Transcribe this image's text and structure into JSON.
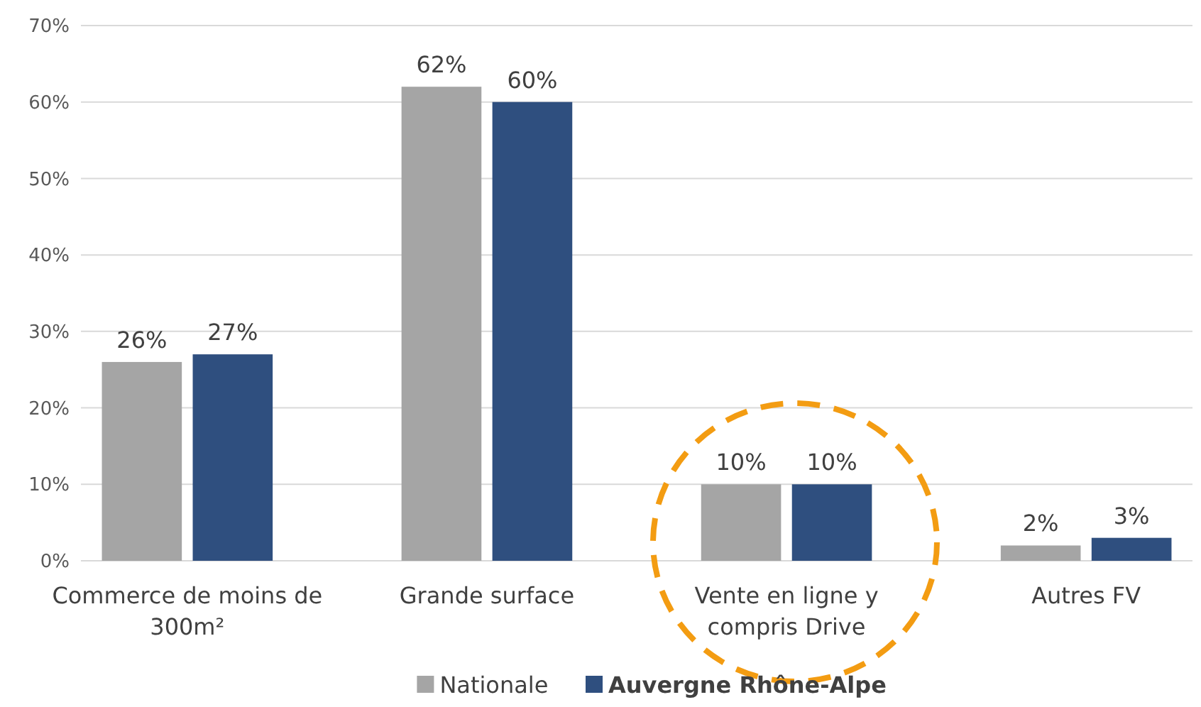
{
  "chart_data": {
    "type": "bar",
    "categories": [
      "Commerce de moins de 300m²",
      "Grande surface",
      "Vente en ligne y compris Drive",
      "Autres FV"
    ],
    "series": [
      {
        "name": "Nationale",
        "color": "#a5a5a5",
        "values": [
          26,
          62,
          10,
          2
        ],
        "value_labels": [
          "26%",
          "62%",
          "10%",
          "2%"
        ]
      },
      {
        "name": "Auvergne Rhône-Alpe",
        "color": "#2f4f7f",
        "values": [
          27,
          60,
          10,
          3
        ],
        "value_labels": [
          "27%",
          "60%",
          "10%",
          "3%"
        ]
      }
    ],
    "ylim": [
      0,
      70
    ],
    "yticks": [
      {
        "value": 0,
        "label": "0%"
      },
      {
        "value": 10,
        "label": "10%"
      },
      {
        "value": 20,
        "label": "20%"
      },
      {
        "value": 30,
        "label": "30%"
      },
      {
        "value": 40,
        "label": "40%"
      },
      {
        "value": 50,
        "label": "50%"
      },
      {
        "value": 60,
        "label": "60%"
      },
      {
        "value": 70,
        "label": "70%"
      }
    ],
    "grid": "y",
    "legend": "bottom"
  }
}
